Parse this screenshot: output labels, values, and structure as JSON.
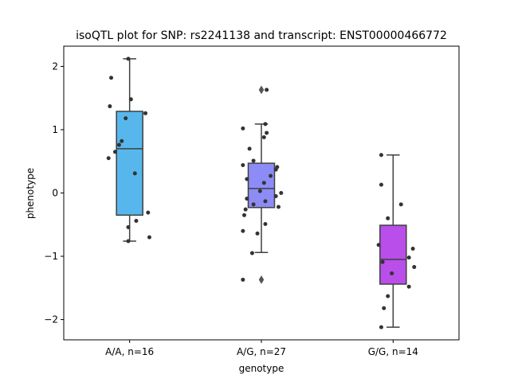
{
  "chart_data": {
    "type": "box",
    "title": "isoQTL plot for SNP: rs2241138 and transcript: ENST00000466772",
    "xlabel": "genotype",
    "ylabel": "phenotype",
    "ylim": [
      -2.32,
      2.32
    ],
    "yticks": [
      -2,
      -1,
      0,
      1,
      2
    ],
    "ytick_labels": [
      "−2",
      "−1",
      "0",
      "1",
      "2"
    ],
    "grid": false,
    "legend": "none",
    "categories": [
      "A/A, n=16",
      "A/G, n=27",
      "G/G, n=14"
    ],
    "colors": [
      "#57b7ed",
      "#8d8cf6",
      "#b94eea"
    ],
    "box_edge_color": "#3f3f3f",
    "point_color": "#333333",
    "boxes": [
      {
        "q1": -0.35,
        "median": 0.7,
        "q3": 1.29,
        "whisker_low": -0.76,
        "whisker_high": 2.12,
        "outliers": []
      },
      {
        "q1": -0.23,
        "median": 0.07,
        "q3": 0.47,
        "whisker_low": -0.94,
        "whisker_high": 1.09,
        "outliers": [
          1.63,
          -1.37
        ]
      },
      {
        "q1": -1.44,
        "median": -1.05,
        "q3": -0.51,
        "whisker_low": -2.12,
        "whisker_high": 0.6,
        "outliers": []
      }
    ],
    "points": [
      [
        {
          "x_jitter": -0.01,
          "y": 2.12
        },
        {
          "x_jitter": -0.14,
          "y": 1.82
        },
        {
          "x_jitter": -0.15,
          "y": 1.37
        },
        {
          "x_jitter": 0.01,
          "y": 1.48
        },
        {
          "x_jitter": 0.12,
          "y": 1.26
        },
        {
          "x_jitter": -0.03,
          "y": 1.18
        },
        {
          "x_jitter": -0.06,
          "y": 0.82
        },
        {
          "x_jitter": -0.08,
          "y": 0.76
        },
        {
          "x_jitter": -0.11,
          "y": 0.65
        },
        {
          "x_jitter": -0.16,
          "y": 0.55
        },
        {
          "x_jitter": 0.04,
          "y": 0.31
        },
        {
          "x_jitter": 0.14,
          "y": -0.31
        },
        {
          "x_jitter": 0.05,
          "y": -0.44
        },
        {
          "x_jitter": -0.01,
          "y": -0.54
        },
        {
          "x_jitter": 0.15,
          "y": -0.7
        },
        {
          "x_jitter": -0.01,
          "y": -0.76
        }
      ],
      [
        {
          "x_jitter": 0.04,
          "y": 1.63
        },
        {
          "x_jitter": -0.14,
          "y": 1.02
        },
        {
          "x_jitter": 0.03,
          "y": 1.09
        },
        {
          "x_jitter": 0.04,
          "y": 0.95
        },
        {
          "x_jitter": 0.02,
          "y": 0.88
        },
        {
          "x_jitter": -0.09,
          "y": 0.7
        },
        {
          "x_jitter": -0.06,
          "y": 0.51
        },
        {
          "x_jitter": -0.14,
          "y": 0.44
        },
        {
          "x_jitter": 0.12,
          "y": 0.41
        },
        {
          "x_jitter": 0.11,
          "y": 0.37
        },
        {
          "x_jitter": 0.07,
          "y": 0.27
        },
        {
          "x_jitter": -0.11,
          "y": 0.22
        },
        {
          "x_jitter": 0.02,
          "y": 0.16
        },
        {
          "x_jitter": -0.01,
          "y": 0.03
        },
        {
          "x_jitter": 0.15,
          "y": 0.0
        },
        {
          "x_jitter": 0.11,
          "y": -0.05
        },
        {
          "x_jitter": -0.11,
          "y": -0.09
        },
        {
          "x_jitter": 0.03,
          "y": -0.13
        },
        {
          "x_jitter": -0.06,
          "y": -0.18
        },
        {
          "x_jitter": 0.13,
          "y": -0.22
        },
        {
          "x_jitter": -0.12,
          "y": -0.26
        },
        {
          "x_jitter": -0.13,
          "y": -0.35
        },
        {
          "x_jitter": 0.03,
          "y": -0.49
        },
        {
          "x_jitter": -0.14,
          "y": -0.6
        },
        {
          "x_jitter": -0.03,
          "y": -0.64
        },
        {
          "x_jitter": -0.07,
          "y": -0.95
        },
        {
          "x_jitter": -0.14,
          "y": -1.37
        }
      ],
      [
        {
          "x_jitter": -0.09,
          "y": 0.6
        },
        {
          "x_jitter": -0.09,
          "y": 0.13
        },
        {
          "x_jitter": 0.06,
          "y": -0.18
        },
        {
          "x_jitter": -0.04,
          "y": -0.4
        },
        {
          "x_jitter": -0.11,
          "y": -0.82
        },
        {
          "x_jitter": 0.15,
          "y": -0.88
        },
        {
          "x_jitter": 0.12,
          "y": -1.02
        },
        {
          "x_jitter": -0.08,
          "y": -1.09
        },
        {
          "x_jitter": 0.16,
          "y": -1.17
        },
        {
          "x_jitter": -0.01,
          "y": -1.27
        },
        {
          "x_jitter": 0.12,
          "y": -1.48
        },
        {
          "x_jitter": -0.04,
          "y": -1.63
        },
        {
          "x_jitter": -0.07,
          "y": -1.82
        },
        {
          "x_jitter": -0.09,
          "y": -2.12
        }
      ]
    ]
  }
}
